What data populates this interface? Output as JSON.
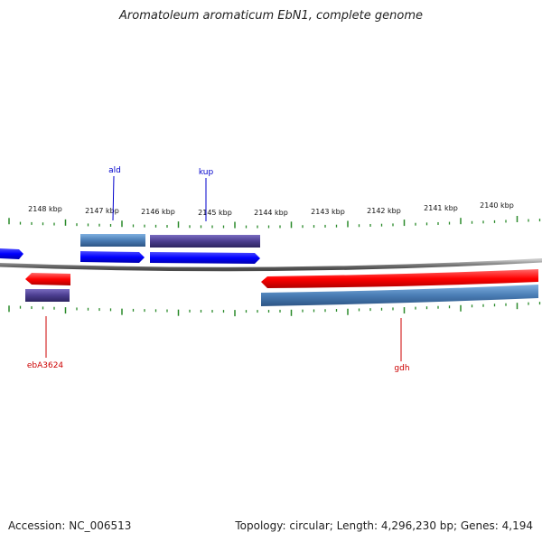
{
  "title": "Aromatoleum aromaticum EbN1, complete genome",
  "footer": {
    "accession": "Accession: NC_006513",
    "summary": "Topology: circular; Length: 4,296,230 bp; Genes: 4,194"
  },
  "ruler_labels": [
    "2148 kbp",
    "2147 kbp",
    "2146 kbp",
    "2145 kbp",
    "2144 kbp",
    "2143 kbp",
    "2142 kbp",
    "2141 kbp",
    "2140 kbp"
  ],
  "gene_labels": {
    "ald": "ald",
    "kup": "kup",
    "eba": "ebA3624",
    "gdh": "gdh"
  },
  "colors": {
    "forward_gene": "#0000ff",
    "reverse_gene": "#ff0000",
    "forward_label": "#0000cc",
    "reverse_label": "#cc0000",
    "cds_dark": "#4b3d8f",
    "cds_steel": "#4a7db5",
    "backbone": "#888888",
    "ticks": "#2a8a2a"
  }
}
